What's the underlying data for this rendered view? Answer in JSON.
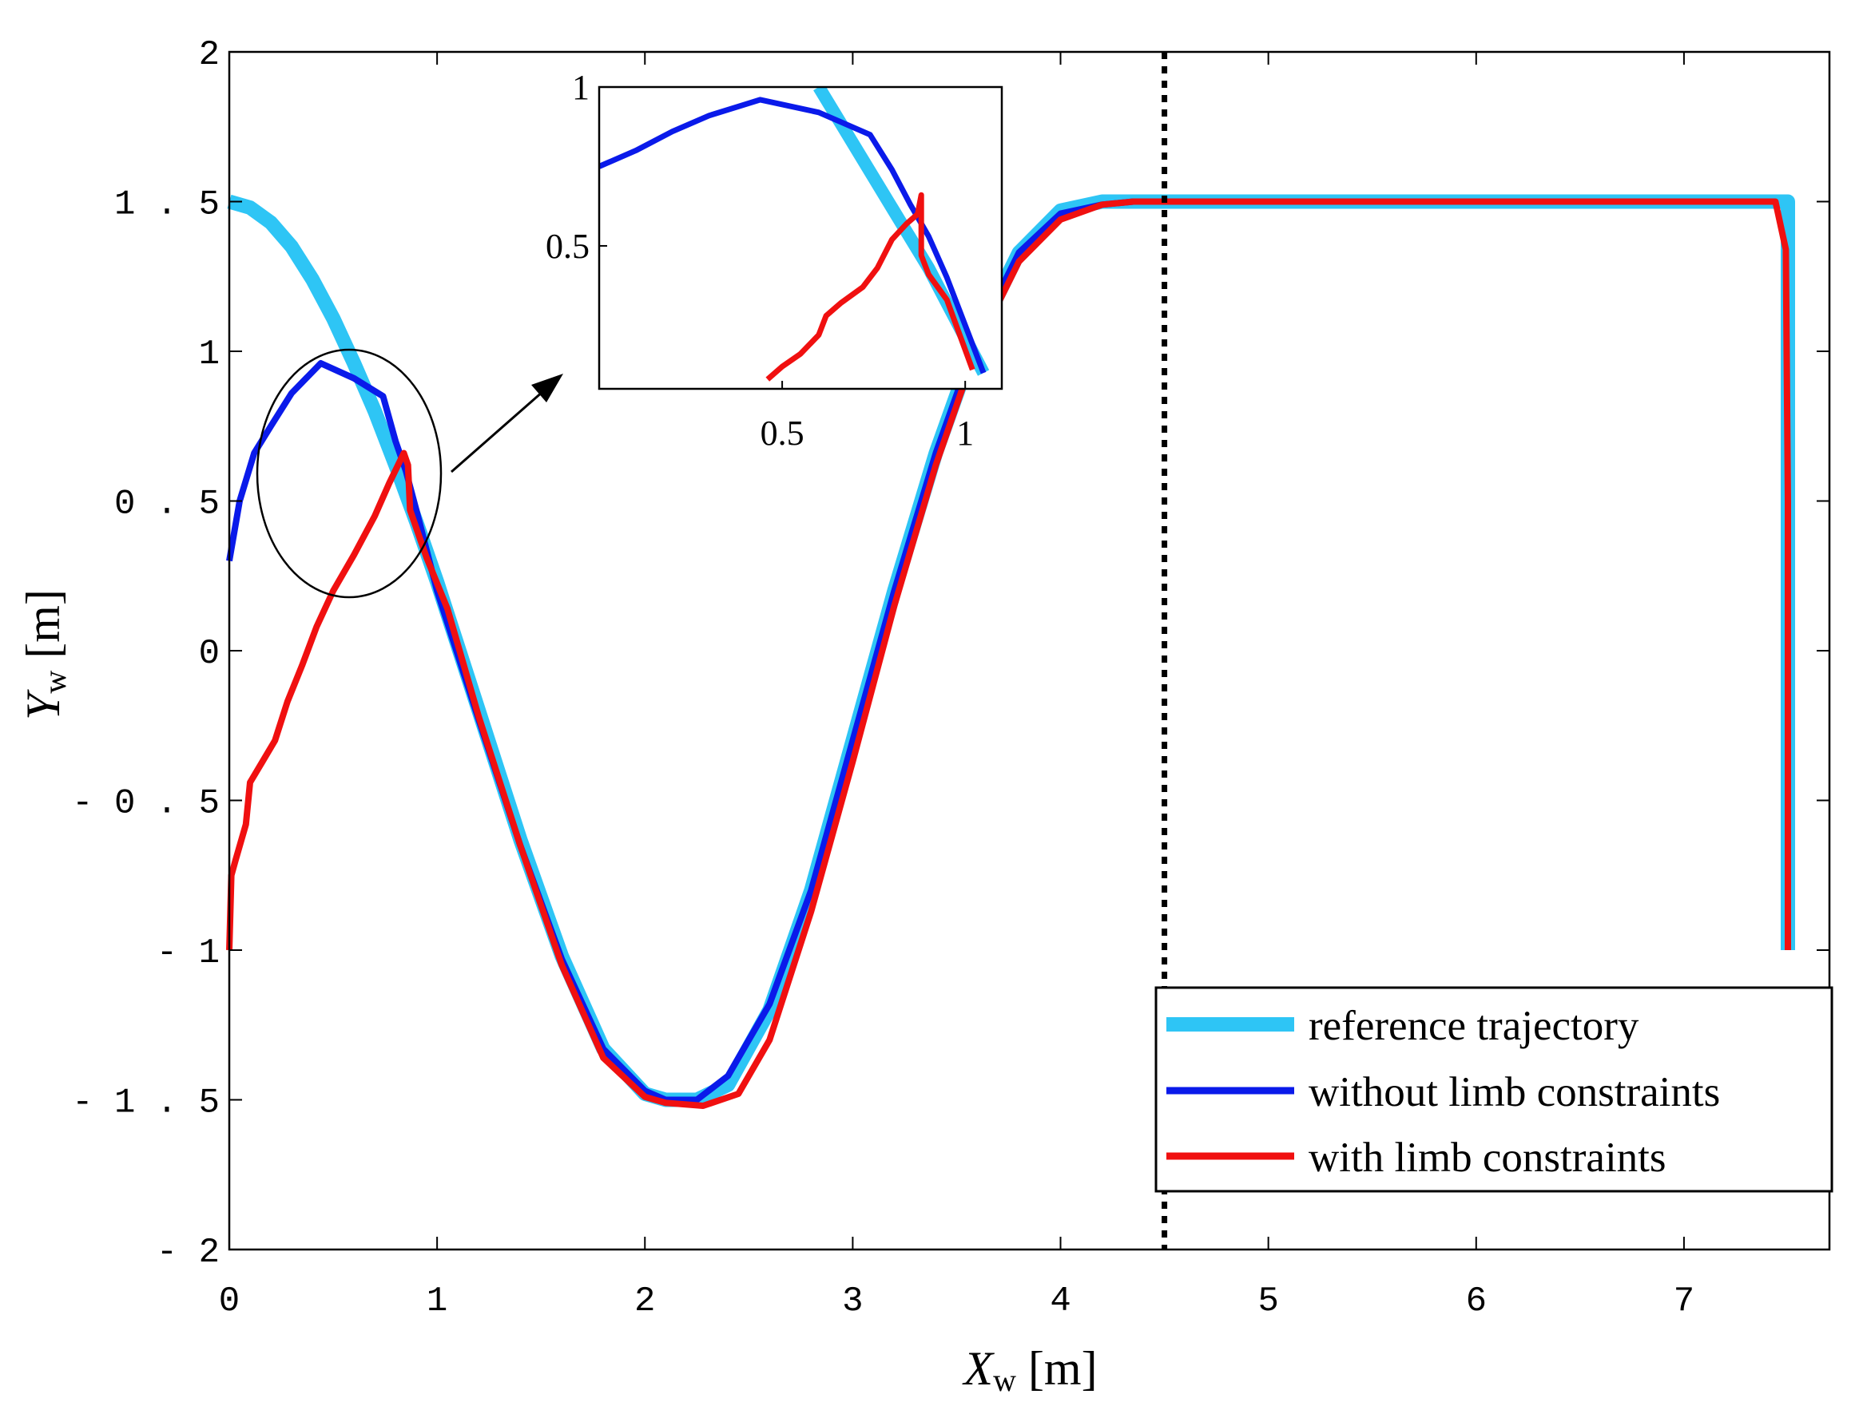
{
  "chart_data": {
    "type": "line",
    "title": "",
    "xlabel": {
      "symbol": "X",
      "subscript": "w",
      "unit": "[m]"
    },
    "ylabel": {
      "symbol": "Y",
      "subscript": "w",
      "unit": "[m]"
    },
    "xlim": [
      0,
      7.7
    ],
    "ylim": [
      -2,
      2
    ],
    "xticks": [
      "0",
      "1",
      "2",
      "3",
      "4",
      "5",
      "6",
      "7"
    ],
    "yticks": [
      "2",
      "1.5",
      "1",
      "0.5",
      "0",
      "-0.5",
      "-1",
      "-1.5",
      "-2"
    ],
    "grid": false,
    "vline": {
      "x": 4.5,
      "style": "dotted",
      "color": "#000000"
    },
    "legend": {
      "position": "bottom-right",
      "entries": [
        "reference trajectory",
        "without limb constraints",
        "with limb constraints"
      ]
    },
    "series": [
      {
        "name": "reference trajectory",
        "color": "#2ec5f5",
        "x": [
          0,
          0.1,
          0.2,
          0.3,
          0.4,
          0.5,
          0.6,
          0.7,
          0.8,
          0.9,
          1.0,
          1.2,
          1.4,
          1.6,
          1.8,
          2.0,
          2.1,
          2.25,
          2.4,
          2.6,
          2.8,
          3.0,
          3.2,
          3.4,
          3.6,
          3.8,
          4.0,
          4.2,
          4.35,
          4.5,
          4.6,
          5.0,
          6.0,
          7.0,
          7.5,
          7.5
        ],
        "y": [
          1.5,
          1.48,
          1.43,
          1.35,
          1.24,
          1.11,
          0.96,
          0.8,
          0.62,
          0.43,
          0.23,
          -0.2,
          -0.63,
          -1.02,
          -1.33,
          -1.48,
          -1.5,
          -1.5,
          -1.45,
          -1.2,
          -0.8,
          -0.3,
          0.2,
          0.66,
          1.05,
          1.33,
          1.47,
          1.5,
          1.5,
          1.5,
          1.5,
          1.5,
          1.5,
          1.5,
          1.5,
          -1.0
        ]
      },
      {
        "name": "without limb constraints",
        "color": "#0a1aea",
        "x": [
          0,
          0.05,
          0.12,
          0.2,
          0.3,
          0.44,
          0.6,
          0.74,
          0.8,
          0.85,
          0.9,
          1.0,
          1.2,
          1.4,
          1.6,
          1.8,
          2.0,
          2.1,
          2.25,
          2.4,
          2.6,
          2.8,
          3.0,
          3.2,
          3.4,
          3.6,
          3.8,
          4.0,
          4.2,
          4.35,
          4.5,
          4.6,
          5.0,
          6.0,
          7.0,
          7.4
        ],
        "y": [
          0.3,
          0.5,
          0.66,
          0.75,
          0.86,
          0.96,
          0.91,
          0.85,
          0.7,
          0.6,
          0.47,
          0.2,
          -0.23,
          -0.65,
          -1.03,
          -1.33,
          -1.47,
          -1.5,
          -1.5,
          -1.42,
          -1.18,
          -0.8,
          -0.3,
          0.2,
          0.66,
          1.05,
          1.33,
          1.46,
          1.49,
          1.5,
          1.5,
          1.5,
          1.5,
          1.5,
          1.5,
          1.5
        ]
      },
      {
        "name": "with limb constraints",
        "color": "#f01010",
        "x": [
          0,
          0.01,
          0.03,
          0.08,
          0.1,
          0.16,
          0.22,
          0.28,
          0.35,
          0.42,
          0.5,
          0.6,
          0.7,
          0.77,
          0.84,
          0.86,
          0.87,
          0.95,
          1.05,
          1.2,
          1.4,
          1.6,
          1.8,
          2.0,
          2.1,
          2.28,
          2.45,
          2.6,
          2.8,
          3.0,
          3.2,
          3.4,
          3.6,
          3.8,
          4.0,
          4.2,
          4.35,
          4.5,
          4.6,
          5.0,
          6.0,
          7.0,
          7.44,
          7.49,
          7.5,
          7.5
        ],
        "y": [
          -1.0,
          -0.75,
          -0.7,
          -0.58,
          -0.44,
          -0.37,
          -0.3,
          -0.17,
          -0.05,
          0.08,
          0.2,
          0.32,
          0.45,
          0.56,
          0.66,
          0.62,
          0.47,
          0.31,
          0.14,
          -0.22,
          -0.65,
          -1.05,
          -1.36,
          -1.49,
          -1.51,
          -1.52,
          -1.48,
          -1.3,
          -0.87,
          -0.37,
          0.15,
          0.62,
          1.02,
          1.3,
          1.44,
          1.49,
          1.5,
          1.5,
          1.5,
          1.5,
          1.5,
          1.5,
          1.5,
          1.34,
          0.5,
          -1.0
        ]
      }
    ],
    "inset": {
      "xlim": [
        0.0,
        1.1
      ],
      "ylim": [
        0.05,
        1.0
      ],
      "xticks": [
        "0.5",
        "1"
      ],
      "yticks": [
        "1",
        "0.5"
      ],
      "series": [
        {
          "name": "reference trajectory",
          "color": "#2ec5f5",
          "x": [
            0.6,
            0.7,
            0.8,
            0.9,
            1.05
          ],
          "y": [
            1.0,
            0.81,
            0.62,
            0.43,
            0.1
          ]
        },
        {
          "name": "without limb constraints",
          "color": "#0a1aea",
          "x": [
            0.0,
            0.1,
            0.2,
            0.3,
            0.44,
            0.6,
            0.74,
            0.8,
            0.85,
            0.9,
            0.95,
            1.05
          ],
          "y": [
            0.75,
            0.8,
            0.86,
            0.91,
            0.96,
            0.92,
            0.85,
            0.74,
            0.63,
            0.53,
            0.4,
            0.1
          ]
        },
        {
          "name": "with limb constraints",
          "color": "#f01010",
          "x": [
            0.46,
            0.5,
            0.55,
            0.6,
            0.62,
            0.66,
            0.72,
            0.76,
            0.8,
            0.84,
            0.87,
            0.88,
            0.88,
            0.9,
            0.95,
            1.02
          ],
          "y": [
            0.08,
            0.12,
            0.16,
            0.22,
            0.28,
            0.32,
            0.37,
            0.43,
            0.52,
            0.57,
            0.6,
            0.66,
            0.47,
            0.41,
            0.33,
            0.11
          ]
        }
      ]
    },
    "annotations": [
      {
        "type": "ellipse",
        "label": "zoom region around X 0.15-1.0, Y 0.2-1.0"
      },
      {
        "type": "arrow",
        "label": "points from zoom region to inset"
      }
    ]
  }
}
